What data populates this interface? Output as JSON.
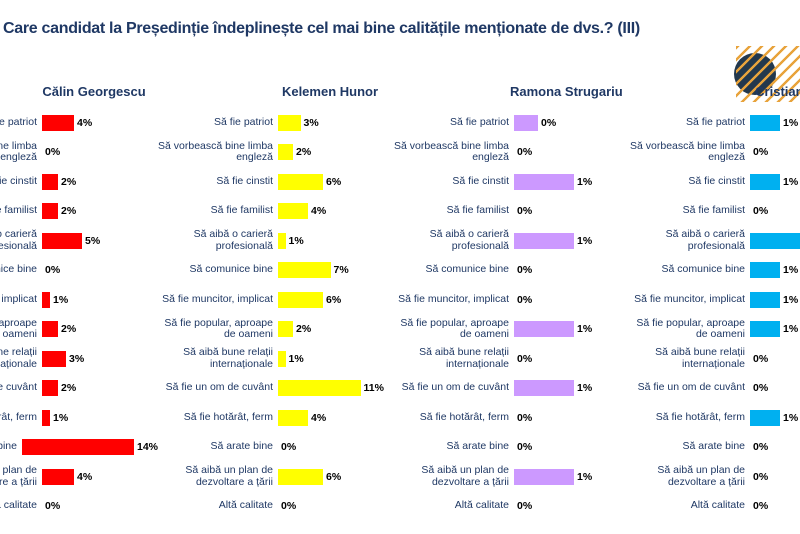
{
  "title": "Care candidat la Președinție îndeplinește cel mai bine calitățile menționate de dvs.? (III)",
  "chart_data": {
    "type": "bar",
    "orientation": "horizontal",
    "layout": "4 small-multiple bar charts side by side, one per candidate, independent x-axis scales, data labels at bar ends, no gridlines, no visible axes",
    "unit": "%",
    "categories": [
      "Să fie patriot",
      "Să vorbească bine limba engleză",
      "Să fie cinstit",
      "Să fie familist",
      "Să aibă o carieră profesională",
      "Să comunice bine",
      "Să fie muncitor, implicat",
      "Să fie popular, aproape de oameni",
      "Să aibă bune relații internaționale",
      "Să fie un om de cuvânt",
      "Să fie hotărât, ferm",
      "Să arate bine",
      "Să aibă un plan de dezvoltare a țării",
      "Altă calitate"
    ],
    "series": [
      {
        "name": "Călin Georgescu",
        "color": "#FF0000",
        "values": [
          4,
          0,
          2,
          2,
          5,
          0,
          1,
          2,
          3,
          2,
          1,
          14,
          4,
          0
        ],
        "labels": [
          "4%",
          "0%",
          "2%",
          "2%",
          "5%",
          "0%",
          "1%",
          "2%",
          "3%",
          "2%",
          "1%",
          "14%",
          "4%",
          "0%"
        ]
      },
      {
        "name": "Kelemen Hunor",
        "color": "#FFFF00",
        "values": [
          3,
          2,
          6,
          4,
          1,
          7,
          6,
          2,
          1,
          11,
          4,
          0,
          6,
          0
        ],
        "labels": [
          "3%",
          "2%",
          "6%",
          "4%",
          "1%",
          "7%",
          "6%",
          "2%",
          "1%",
          "11%",
          "4%",
          "0%",
          "6%",
          "0%"
        ]
      },
      {
        "name": "Ramona Strugariu",
        "color": "#CC99FF",
        "values": [
          0.4,
          0,
          1,
          0,
          1,
          0,
          0,
          1,
          0,
          1,
          0,
          0,
          1,
          0
        ],
        "labels": [
          "0%",
          "0%",
          "1%",
          "0%",
          "1%",
          "0%",
          "0%",
          "1%",
          "0%",
          "1%",
          "0%",
          "0%",
          "1%",
          "0%"
        ]
      },
      {
        "name": "Cristian Terheș",
        "color": "#00B0F0",
        "values": [
          1,
          0,
          1,
          0,
          2,
          1,
          1,
          1,
          0,
          0,
          1,
          0,
          0,
          0
        ],
        "labels": [
          "1%",
          "0%",
          "1%",
          "0%",
          "",
          "1%",
          "1%",
          "1%",
          "0%",
          "0%",
          "1%",
          "0%",
          "0%",
          "0%"
        ]
      }
    ]
  },
  "colors": {
    "title_text": "#1F3864",
    "label_text": "#1F3864",
    "value_text": "#000000",
    "decoration_circle": "#23384D",
    "decoration_stripes": "#E8A33C"
  }
}
